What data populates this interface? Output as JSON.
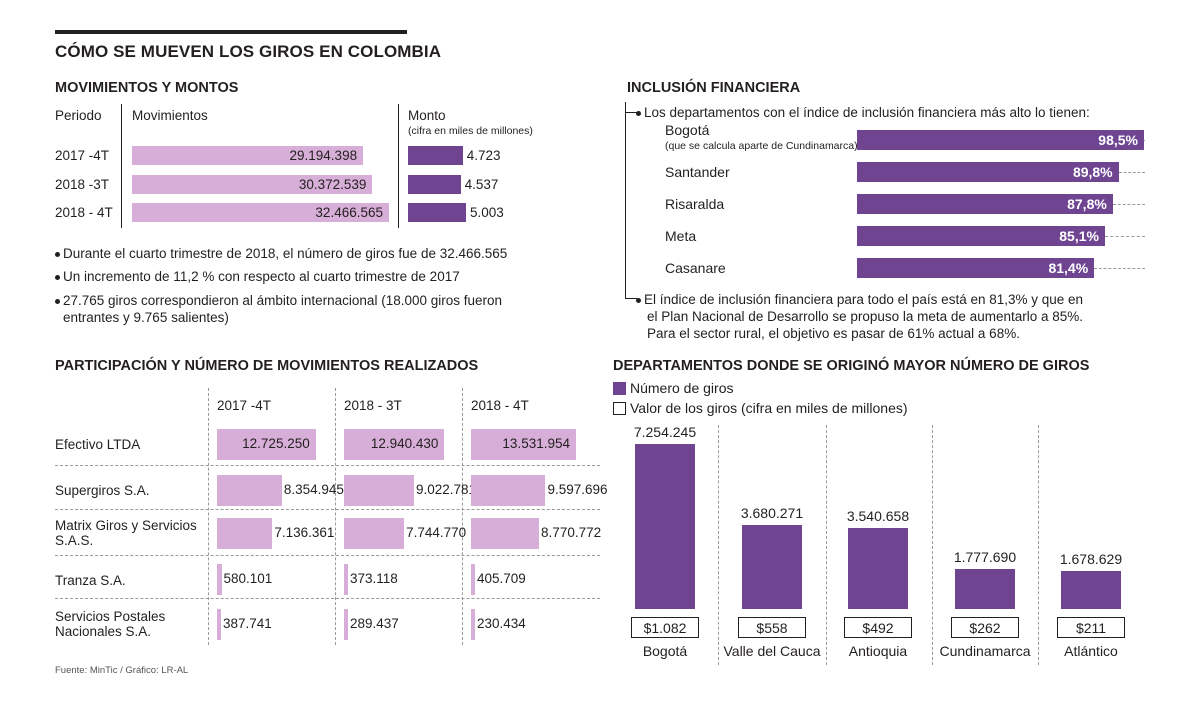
{
  "title": "CÓMO SE MUEVEN LOS GIROS EN COLOMBIA",
  "source": "Fuente: MinTic / Gráfico: LR-AL",
  "colors": {
    "pink": "#d7aed7",
    "purple": "#6f4592"
  },
  "mov": {
    "heading": "MOVIMIENTOS Y MONTOS",
    "col_periodo": "Periodo",
    "col_mov": "Movimientos",
    "col_monto": "Monto",
    "col_monto_note": "(cifra en miles de millones)",
    "bullets": [
      "Durante el cuarto trimestre de 2018, el número de giros fue de 32.466.565",
      "Un incremento de 11,2 % con respecto al cuarto trimestre de 2017",
      "27.765 giros correspondieron al ámbito internacional (18.000 giros fueron",
      "entrantes y 9.765 salientes)"
    ]
  },
  "part": {
    "heading": "PARTICIPACIÓN Y NÚMERO DE MOVIMIENTOS REALIZADOS",
    "periods": [
      "2017 -4T",
      "2018 - 3T",
      "2018 - 4T"
    ],
    "companies": [
      "Efectivo LTDA",
      "Supergiros S.A.",
      "Matrix Giros y Servicios",
      "S.A.S.",
      "Tranza S.A.",
      "Servicios Postales",
      "Nacionales S.A."
    ]
  },
  "incl": {
    "heading": "INCLUSIÓN FINANCIERA",
    "intro": "Los departamentos con el índice de inclusión financiera más alto lo tienen:",
    "bogota_note": "(que se calcula aparte de Cundinamarca)",
    "note_lines": [
      "El índice de inclusión financiera para todo el país está en 81,3% y que en",
      "el Plan Nacional de Desarrollo se propuso la meta de aumentarlo a 85%.",
      "Para el sector rural, el objetivo es pasar de 61% actual a 68%."
    ]
  },
  "dept": {
    "heading": "DEPARTAMENTOS  DONDE SE ORIGINÓ MAYOR NÚMERO DE GIROS",
    "legend_num": "Número de giros",
    "legend_val": "Valor de los giros (cifra en miles de millones)"
  },
  "chart_data": [
    {
      "type": "bar",
      "title": "MOVIMIENTOS Y MONTOS",
      "categories": [
        "2017 -4T",
        "2018 -3T",
        "2018 - 4T"
      ],
      "series": [
        {
          "name": "Movimientos",
          "values": [
            29194398,
            30372539,
            32466565
          ],
          "labels": [
            "29.194.398",
            "30.372.539",
            "32.466.565"
          ]
        },
        {
          "name": "Monto",
          "values": [
            4723,
            4537,
            5003
          ],
          "labels": [
            "4.723",
            "4.537",
            "5.003"
          ]
        }
      ]
    },
    {
      "type": "bar",
      "title": "PARTICIPACIÓN Y NÚMERO DE MOVIMIENTOS REALIZADOS",
      "categories": [
        "Efectivo LTDA",
        "Supergiros S.A.",
        "Matrix Giros y Servicios S.A.S.",
        "Tranza S.A.",
        "Servicios Postales Nacionales S.A."
      ],
      "series": [
        {
          "name": "2017 -4T",
          "values": [
            12725250,
            8354945,
            7136361,
            580101,
            387741
          ],
          "labels": [
            "12.725.250",
            "8.354.945",
            "7.136.361",
            "580.101",
            "387.741"
          ]
        },
        {
          "name": "2018 - 3T",
          "values": [
            12940430,
            9022781,
            7744770,
            373118,
            289437
          ],
          "labels": [
            "12.940.430",
            "9.022.781",
            "7.744.770",
            "373.118",
            "289.437"
          ]
        },
        {
          "name": "2018 - 4T",
          "values": [
            13531954,
            9597696,
            8770772,
            405709,
            230434
          ],
          "labels": [
            "13.531.954",
            "9.597.696",
            "8.770.772",
            "405.709",
            "230.434"
          ]
        }
      ]
    },
    {
      "type": "bar",
      "title": "INCLUSIÓN FINANCIERA",
      "categories": [
        "Bogotá",
        "Santander",
        "Risaralda",
        "Meta",
        "Casanare"
      ],
      "values": [
        98.5,
        89.8,
        87.8,
        85.1,
        81.4
      ],
      "labels": [
        "98,5%",
        "89,8%",
        "87,8%",
        "85,1%",
        "81,4%"
      ]
    },
    {
      "type": "bar",
      "title": "DEPARTAMENTOS  DONDE SE ORIGINÓ MAYOR NÚMERO DE GIROS",
      "categories": [
        "Bogotá",
        "Valle del Cauca",
        "Antioquia",
        "Cundinamarca",
        "Atlántico"
      ],
      "series": [
        {
          "name": "Número de giros",
          "values": [
            7254245,
            3680271,
            3540658,
            1777690,
            1678629
          ],
          "labels": [
            "7.254.245",
            "3.680.271",
            "3.540.658",
            "1.777.690",
            "1.678.629"
          ]
        },
        {
          "name": "Valor de los giros (cifra en miles de millones)",
          "values": [
            1082,
            558,
            492,
            262,
            211
          ],
          "labels": [
            "$1.082",
            "$558",
            "$492",
            "$262",
            "$211"
          ]
        }
      ]
    }
  ]
}
